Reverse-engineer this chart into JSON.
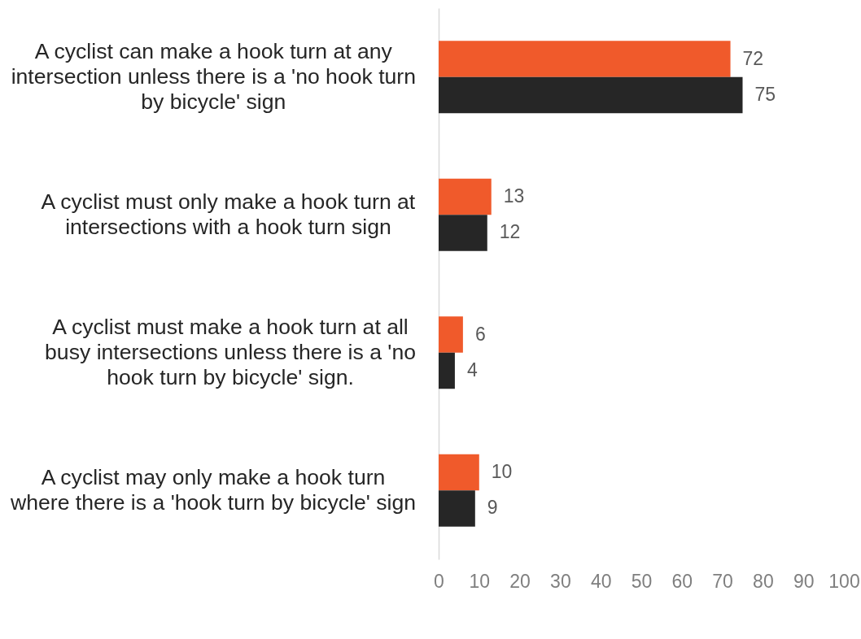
{
  "chart_data": {
    "type": "bar",
    "orientation": "horizontal",
    "categories": [
      "A cyclist can make a hook turn at any intersection unless there is a 'no hook turn by bicycle' sign",
      "A cyclist must only make a hook turn at intersections with a hook turn sign",
      "A cyclist must make a hook turn at all busy intersections unless there is a 'no hook turn by bicycle' sign.",
      "A cyclist may only make a hook turn where there is a 'hook turn by bicycle' sign"
    ],
    "series": [
      {
        "color": "#f05a2b",
        "values": [
          72,
          13,
          6,
          10
        ]
      },
      {
        "color": "#262626",
        "values": [
          75,
          12,
          4,
          9
        ]
      }
    ],
    "xlim": [
      0,
      100
    ],
    "xticks": [
      0,
      10,
      20,
      30,
      40,
      50,
      60,
      70,
      80,
      90,
      100
    ],
    "data_labels": true
  }
}
